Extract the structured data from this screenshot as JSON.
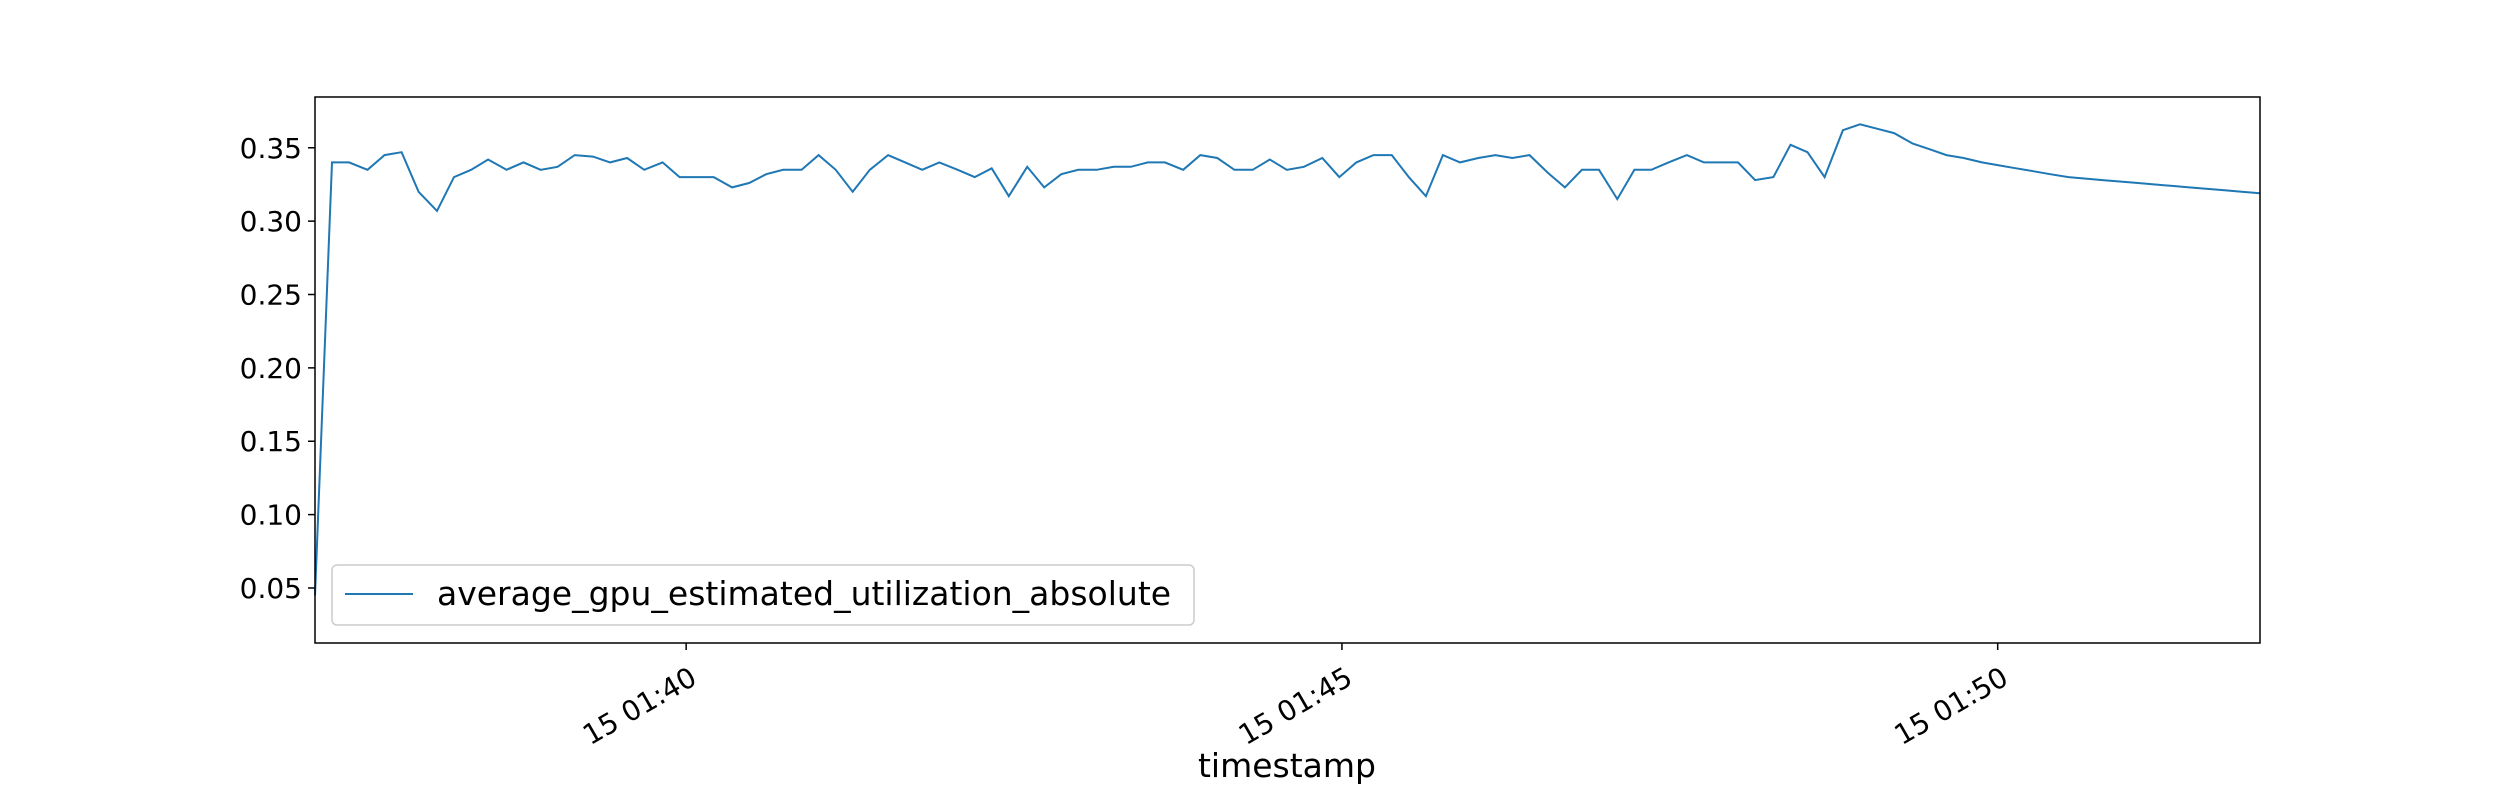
{
  "chart_data": {
    "type": "line",
    "xlabel": "timestamp",
    "ylabel": "",
    "xlim_minutes": [
      37.17,
      52.0
    ],
    "ylim": [
      0.0125,
      0.3846
    ],
    "grid": false,
    "legend_position": "lower-left",
    "colors": {
      "series": "#1f77b4"
    },
    "x_ticks": [
      {
        "value": 40,
        "label": "15 01:40"
      },
      {
        "value": 45,
        "label": "15 01:45"
      },
      {
        "value": 50,
        "label": "15 01:50"
      }
    ],
    "y_ticks": [
      {
        "value": 0.05,
        "label": "0.05"
      },
      {
        "value": 0.1,
        "label": "0.10"
      },
      {
        "value": 0.15,
        "label": "0.15"
      },
      {
        "value": 0.2,
        "label": "0.20"
      },
      {
        "value": 0.25,
        "label": "0.25"
      },
      {
        "value": 0.3,
        "label": "0.30"
      },
      {
        "value": 0.35,
        "label": "0.35"
      }
    ],
    "series": [
      {
        "name": "average_gpu_estimated_utilization_absolute",
        "x": [
          37.17,
          37.3,
          37.43,
          37.57,
          37.7,
          37.83,
          37.96,
          38.1,
          38.23,
          38.36,
          38.49,
          38.63,
          38.76,
          38.89,
          39.02,
          39.15,
          39.29,
          39.42,
          39.55,
          39.68,
          39.82,
          39.95,
          40.08,
          40.21,
          40.35,
          40.48,
          40.61,
          40.74,
          40.88,
          41.01,
          41.14,
          41.27,
          41.4,
          41.54,
          41.67,
          41.8,
          41.93,
          42.07,
          42.2,
          42.33,
          42.46,
          42.6,
          42.73,
          42.86,
          42.99,
          43.13,
          43.26,
          43.39,
          43.52,
          43.65,
          43.79,
          43.92,
          44.05,
          44.18,
          44.32,
          44.45,
          44.58,
          44.71,
          44.85,
          44.98,
          45.11,
          45.24,
          45.38,
          45.51,
          45.64,
          45.77,
          45.9,
          46.04,
          46.17,
          46.3,
          46.43,
          46.57,
          46.7,
          46.83,
          46.96,
          47.1,
          47.23,
          47.36,
          47.49,
          47.63,
          47.76,
          47.89,
          48.02,
          48.15,
          48.29,
          48.42,
          48.55,
          48.68,
          48.82,
          48.95,
          49.08,
          49.21,
          49.35,
          49.48,
          49.61,
          49.74,
          49.88,
          50.01,
          50.14,
          50.27,
          50.4,
          50.54,
          50.67,
          50.8,
          50.93,
          51.07,
          51.2,
          51.33,
          51.46,
          51.6,
          51.73,
          51.86,
          52.0
        ],
        "values": [
          0.045,
          0.34,
          0.34,
          0.335,
          0.345,
          0.347,
          0.32,
          0.307,
          0.33,
          0.335,
          0.342,
          0.335,
          0.34,
          0.335,
          0.337,
          0.345,
          0.344,
          0.34,
          0.343,
          0.335,
          0.34,
          0.33,
          0.33,
          0.33,
          0.323,
          0.326,
          0.332,
          0.335,
          0.335,
          0.345,
          0.335,
          0.32,
          0.335,
          0.345,
          0.34,
          0.335,
          0.34,
          0.335,
          0.33,
          0.336,
          0.317,
          0.337,
          0.323,
          0.332,
          0.335,
          0.335,
          0.337,
          0.337,
          0.34,
          0.34,
          0.335,
          0.345,
          0.343,
          0.335,
          0.335,
          0.342,
          0.335,
          0.337,
          0.343,
          0.33,
          0.34,
          0.345,
          0.345,
          0.33,
          0.317,
          0.345,
          0.34,
          0.343,
          0.345,
          0.343,
          0.345,
          0.333,
          0.323,
          0.335,
          0.335,
          0.315,
          0.335,
          0.335,
          0.34,
          0.345,
          0.34,
          0.34,
          0.34,
          0.328,
          0.33,
          0.352,
          0.347,
          0.33,
          0.362,
          0.366,
          0.363,
          0.36,
          0.353,
          0.349,
          0.345,
          0.343,
          0.34,
          0.338,
          0.336,
          0.334,
          0.332,
          0.33,
          0.329,
          0.328,
          0.327,
          0.326,
          0.325,
          0.324,
          0.323,
          0.322,
          0.321,
          0.32,
          0.319
        ]
      }
    ]
  }
}
